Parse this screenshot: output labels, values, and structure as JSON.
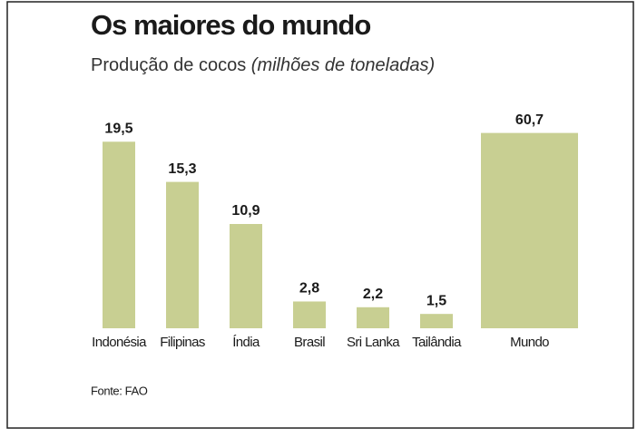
{
  "chart_data": [
    {
      "type": "bar",
      "title": "Os maiores do mundo",
      "subtitle": "Produção de cocos",
      "subtitle_unit": "(milhões de toneladas)",
      "source": "Fonte: FAO",
      "categories": [
        "Indonésia",
        "Filipinas",
        "Índia",
        "Brasil",
        "Sri Lanka",
        "Tailândia"
      ],
      "values": [
        19.5,
        15.3,
        10.9,
        2.8,
        2.2,
        1.5
      ],
      "value_labels": [
        "19,5",
        "15,3",
        "10,9",
        "2,8",
        "2,2",
        "1,5"
      ],
      "color": "#c8cf92",
      "ylim": [
        0,
        20
      ]
    },
    {
      "type": "bar",
      "categories": [
        "Mundo"
      ],
      "values": [
        60.7
      ],
      "value_labels": [
        "60,7"
      ],
      "color": "#c8cf92",
      "ylim": [
        0,
        62
      ]
    }
  ]
}
